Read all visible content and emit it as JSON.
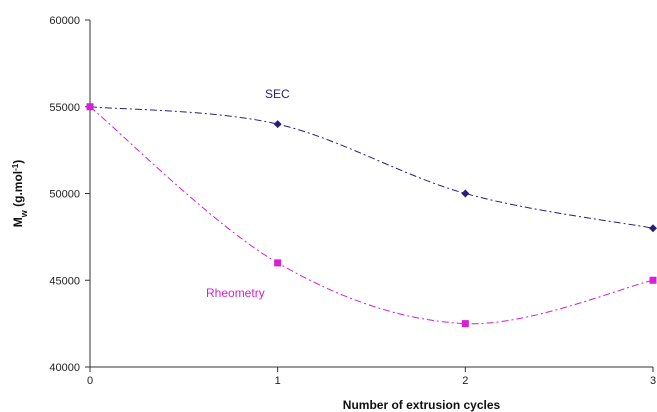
{
  "chart_data": {
    "type": "line",
    "title": "",
    "xlabel": "Number of extrusion cycles",
    "ylabel": {
      "main": "M",
      "sub": "w",
      "rest": " (g.mol",
      "sup": "-1",
      "close": ")"
    },
    "xlim": [
      0,
      3
    ],
    "ylim": [
      40000,
      60000
    ],
    "x_ticks": [
      0,
      1,
      2,
      3
    ],
    "y_ticks": [
      40000,
      45000,
      50000,
      55000,
      60000
    ],
    "grid": false,
    "legend": "none",
    "series": [
      {
        "name": "SEC",
        "color": "#2a1f78",
        "marker": "diamond",
        "line": "dash-dot",
        "x": [
          0,
          1,
          2,
          3
        ],
        "y": [
          55000,
          54000,
          50000,
          48000
        ]
      },
      {
        "name": "Rheometry",
        "color": "#d61fd6",
        "marker": "square",
        "line": "dash-dot",
        "x": [
          0,
          1,
          2,
          3
        ],
        "y": [
          55000,
          46000,
          42500,
          45000
        ]
      }
    ]
  }
}
